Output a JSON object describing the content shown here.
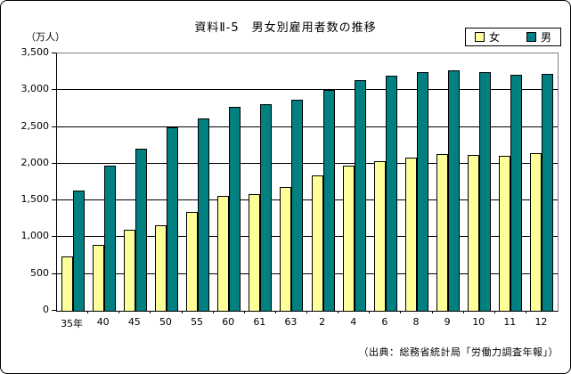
{
  "figure": {
    "title": "資料Ⅱ-5　男女別雇用者数の推移",
    "unit_label": "（万人）",
    "source": "（出典：総務省統計局「労働力調査年報」）"
  },
  "chart_data": {
    "type": "bar",
    "title": "資料Ⅱ-5　男女別雇用者数の推移",
    "ylabel": "（万人）",
    "xlabel": "",
    "ylim": [
      0,
      3500
    ],
    "grid": "horizontal",
    "legend_position": "top-right",
    "ytick_values": [
      0,
      500,
      1000,
      1500,
      2000,
      2500,
      3000,
      3500
    ],
    "ytick_labels": [
      "0",
      "500",
      "1,000",
      "1,500",
      "2,000",
      "2,500",
      "3,000",
      "3,500"
    ],
    "categories": [
      "35年",
      "40",
      "45",
      "50",
      "55",
      "60",
      "61",
      "63",
      "2",
      "4",
      "6",
      "8",
      "9",
      "10",
      "11",
      "12"
    ],
    "series": [
      {
        "name": "女",
        "key": "female",
        "color": "#FFFF99",
        "values": [
          740,
          900,
          1100,
          1160,
          1350,
          1560,
          1590,
          1680,
          1840,
          1970,
          2030,
          2080,
          2130,
          2120,
          2110,
          2140
        ]
      },
      {
        "name": "男",
        "key": "male",
        "color": "#008080",
        "values": [
          1630,
          1970,
          2210,
          2500,
          2620,
          2770,
          2810,
          2870,
          3000,
          3140,
          3200,
          3240,
          3270,
          3240,
          3210,
          3220
        ]
      }
    ]
  },
  "colors": {
    "plot_border": "#808080",
    "axis": "#000000",
    "background": "#ffffff"
  }
}
